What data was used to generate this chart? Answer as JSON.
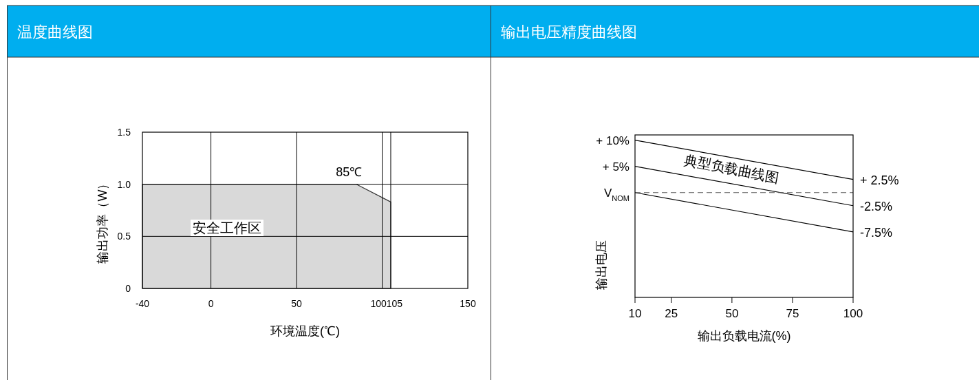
{
  "chart_data": [
    {
      "type": "area",
      "title": "温度曲线图",
      "xlabel": "环境温度(℃)",
      "ylabel": "输出功率（W）",
      "xlim": [
        -40,
        150
      ],
      "xticks": [
        -40,
        0,
        50,
        100,
        105,
        150
      ],
      "ylim": [
        0,
        1.5
      ],
      "yticks": [
        0,
        0.5,
        {
          "value": 1,
          "label": "1.0"
        },
        1.5
      ],
      "grid": true,
      "series": [
        {
          "color": "#d9d9d9",
          "x": [
            -40,
            85,
            105,
            105
          ],
          "values": [
            1,
            1,
            0.83,
            0
          ]
        }
      ],
      "annotations": [
        {
          "text": "85℃",
          "x": 85,
          "y": 1
        },
        "安全工作区"
      ]
    },
    {
      "type": "line",
      "title": "输出电压精度曲线图",
      "xlabel": "输出负载电流(%)",
      "ylabel": "输出电压",
      "xlim": [
        10,
        100
      ],
      "xticks": [
        10,
        25,
        50,
        75,
        100
      ],
      "ylim": [
        -20,
        11
      ],
      "yticks": [
        {
          "value": 10,
          "label": "+ 10%"
        },
        {
          "value": 5,
          "label": "+ 5%"
        },
        {
          "value": 0,
          "label": "V$_{NOM}$"
        }
      ],
      "series": [
        {
          "color": "#000000",
          "x": [
            10,
            100
          ],
          "values": [
            10,
            2.5
          ],
          "value_labels": [
            null,
            "+ 2.5%"
          ]
        },
        {
          "color": "#000000",
          "x": [
            10,
            100
          ],
          "values": [
            5,
            -2.5
          ],
          "value_labels": [
            null,
            "-2.5%"
          ]
        },
        {
          "color": "#000000",
          "x": [
            10,
            100
          ],
          "values": [
            0,
            -7.5
          ],
          "value_labels": [
            null,
            "-7.5%"
          ]
        }
      ],
      "ref_lines": [
        {
          "axis": "y",
          "value": 0,
          "color": "#555555",
          "line_style": "dashed"
        }
      ],
      "annotations": [
        "典型负载曲线图"
      ]
    }
  ]
}
